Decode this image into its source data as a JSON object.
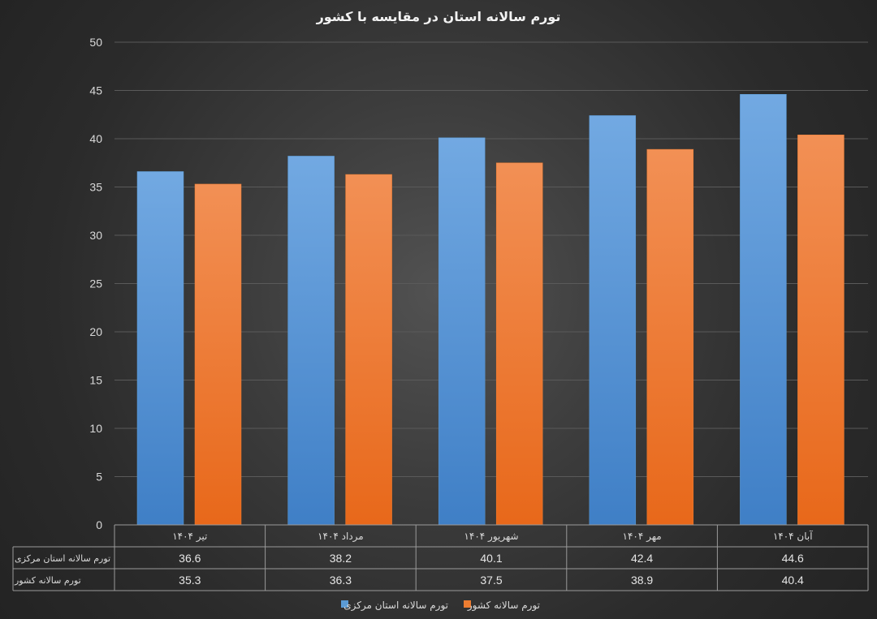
{
  "chart_data": {
    "type": "bar",
    "title": "تورم سالانه استان در مقایسه با کشور",
    "categories": [
      "تیر ۱۴۰۴",
      "مرداد ۱۴۰۴",
      "شهریور ۱۴۰۴",
      "مهر ۱۴۰۴",
      "آبان ۱۴۰۴"
    ],
    "series": [
      {
        "name": "تورم سالانه استان مرکزی",
        "values": [
          36.6,
          38.2,
          40.1,
          42.4,
          44.6
        ],
        "color": "#5b9bd5"
      },
      {
        "name": "تورم سالانه کشور",
        "values": [
          35.3,
          36.3,
          37.5,
          38.9,
          40.4
        ],
        "color": "#ed7d31"
      }
    ],
    "ylim": [
      0,
      50
    ],
    "yticks": [
      "0",
      "5",
      "10",
      "15",
      "20",
      "25",
      "30",
      "35",
      "40",
      "45",
      "50"
    ],
    "grid": true,
    "data_table": true,
    "legend_position": "bottom"
  }
}
